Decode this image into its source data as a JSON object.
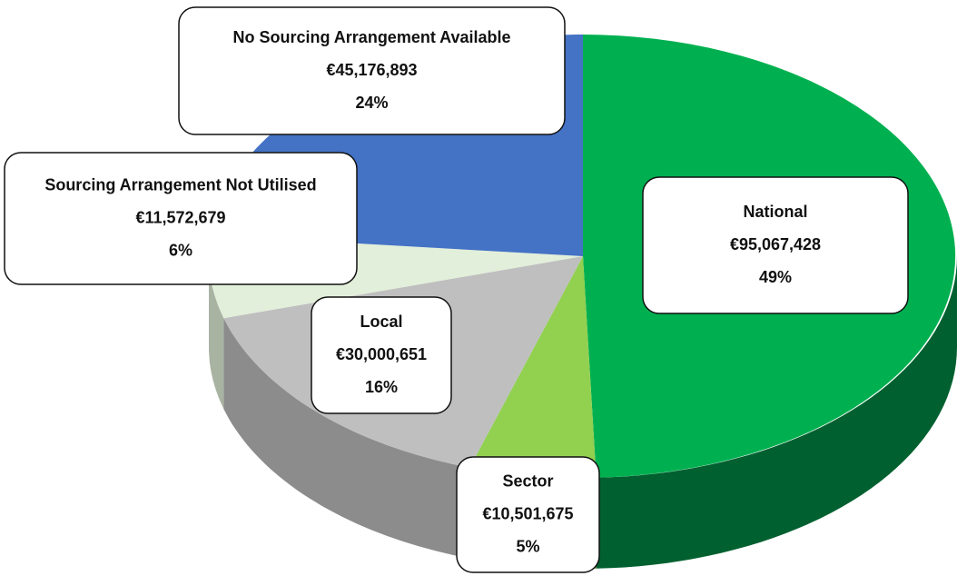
{
  "chart_data": {
    "type": "pie",
    "categories": [
      "National",
      "Sector",
      "Local",
      "Sourcing Arrangement Not Utilised",
      "No Sourcing Arrangement Available"
    ],
    "values": [
      95067428,
      10501675,
      30000651,
      11572679,
      45176893
    ],
    "value_labels": [
      "€95,067,428",
      "€10,501,675",
      "€30,000,651",
      "€11,572,679",
      "€45,176,893"
    ],
    "percent_labels": [
      "49%",
      "5%",
      "16%",
      "6%",
      "24%"
    ],
    "colors": [
      "#00b050",
      "#92d050",
      "#bfbfbf",
      "#e2efda",
      "#4472c4"
    ],
    "side_colors": [
      "#00602f",
      "#5e8a30",
      "#8c8c8c",
      "#a9b3a2",
      "#2c4f8c"
    ]
  }
}
